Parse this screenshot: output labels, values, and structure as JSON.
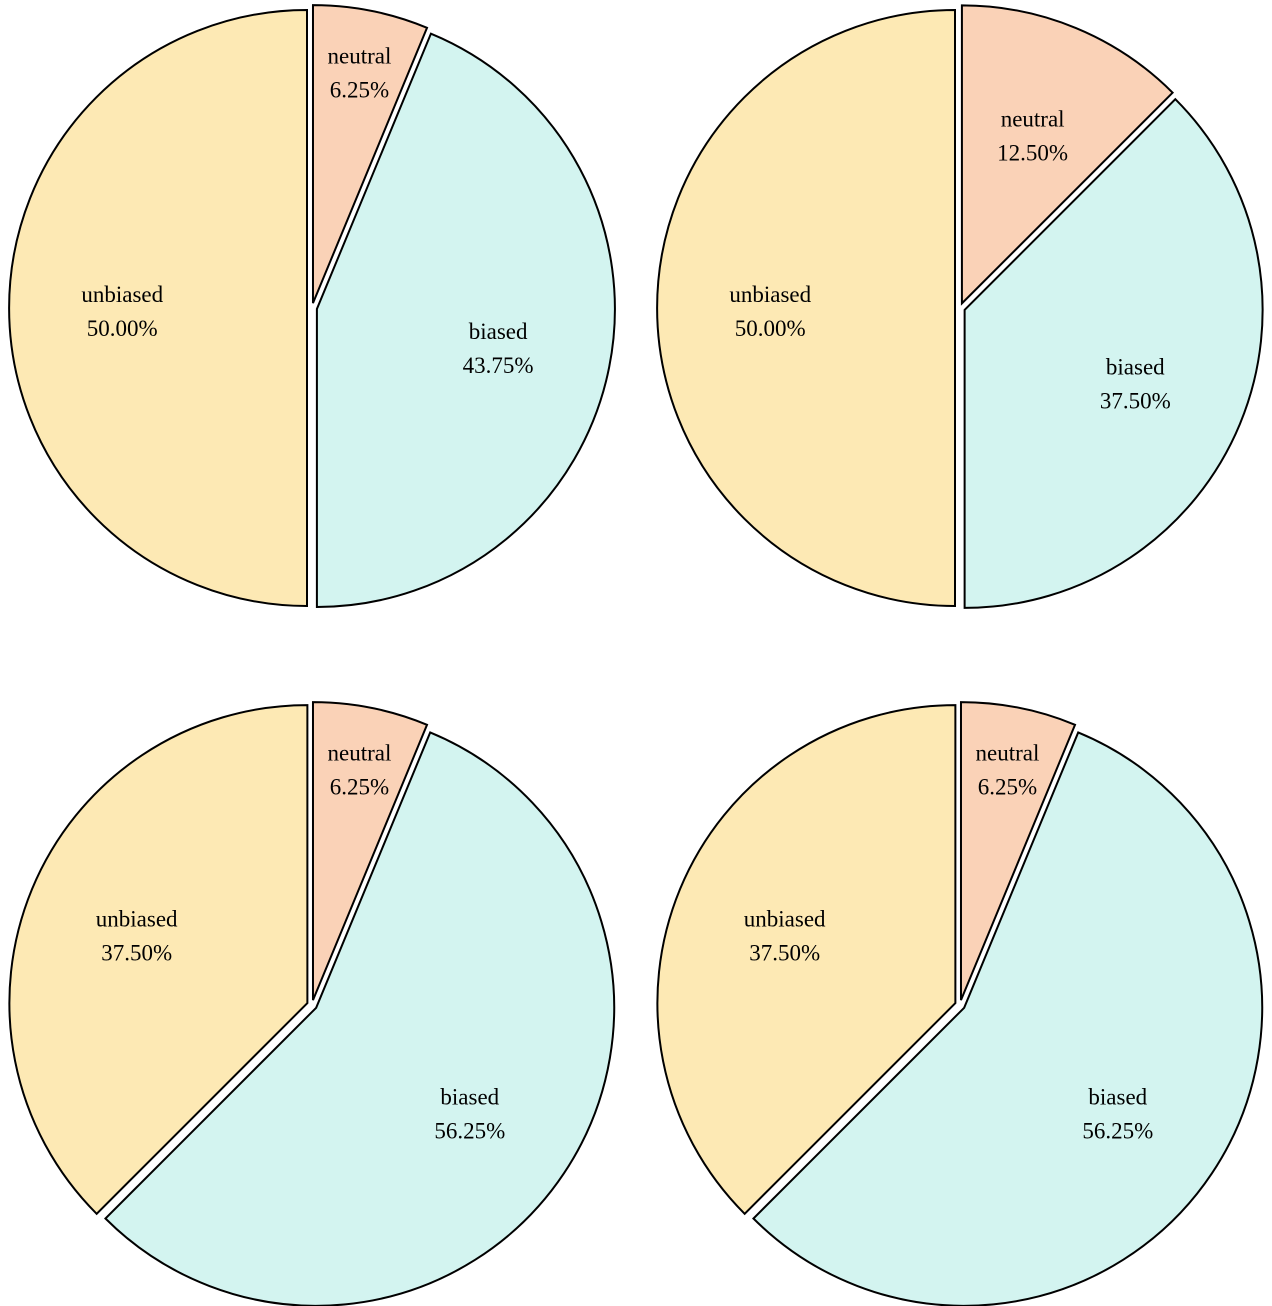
{
  "chart_data": [
    {
      "type": "pie",
      "slices": [
        {
          "label": "unbiased",
          "value": 50.0,
          "display": "50.00%",
          "color": "#fde9b4"
        },
        {
          "label": "biased",
          "value": 43.75,
          "display": "43.75%",
          "color": "#d3f4f0"
        },
        {
          "label": "neutral",
          "value": 6.25,
          "display": "6.25%",
          "color": "#fad2b7"
        }
      ]
    },
    {
      "type": "pie",
      "slices": [
        {
          "label": "unbiased",
          "value": 50.0,
          "display": "50.00%",
          "color": "#fde9b4"
        },
        {
          "label": "biased",
          "value": 37.5,
          "display": "37.50%",
          "color": "#d3f4f0"
        },
        {
          "label": "neutral",
          "value": 12.5,
          "display": "12.50%",
          "color": "#fad2b7"
        }
      ]
    },
    {
      "type": "pie",
      "slices": [
        {
          "label": "unbiased",
          "value": 37.5,
          "display": "37.50%",
          "color": "#fde9b4"
        },
        {
          "label": "biased",
          "value": 56.25,
          "display": "56.25%",
          "color": "#d3f4f0"
        },
        {
          "label": "neutral",
          "value": 6.25,
          "display": "6.25%",
          "color": "#fad2b7"
        }
      ]
    },
    {
      "type": "pie",
      "slices": [
        {
          "label": "unbiased",
          "value": 37.5,
          "display": "37.50%",
          "color": "#fde9b4"
        },
        {
          "label": "biased",
          "value": 56.25,
          "display": "56.25%",
          "color": "#d3f4f0"
        },
        {
          "label": "neutral",
          "value": 6.25,
          "display": "6.25%",
          "color": "#fad2b7"
        }
      ]
    }
  ]
}
